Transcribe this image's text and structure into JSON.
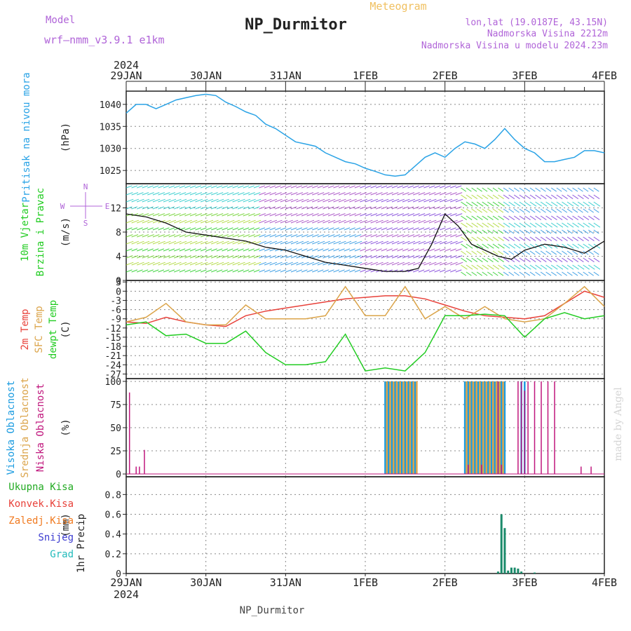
{
  "header": {
    "model_label": "Model",
    "model_name": "wrf—nmm_v3.9.1  e1km",
    "station": "NP_Durmitor",
    "product": "Meteogram",
    "lonlat": "lon,lat (19.0187E, 43.15N)",
    "elevation": "Nadmorska Visina 2212m",
    "model_elevation": "Nadmorska Visina u modelu 2024.23m",
    "year": "2024",
    "footer": "NP_Durmitor",
    "credit": "made by Angel"
  },
  "colors": {
    "pressure": "#2aa3e6",
    "temp2m": "#e8413a",
    "sfc": "#dba44a",
    "dewpt": "#22cc22",
    "high_cloud": "#1a9be0",
    "mid_cloud": "#dba44a",
    "low_cloud": "#c0177d",
    "total_precip": "#22aa22",
    "convective": "#e8413a",
    "freezing": "#f07a20",
    "snow": "#3b3bd0",
    "graupel": "#22bbbb",
    "wind_label": "#22cc22",
    "compass": "#b064d8"
  },
  "x_axis": {
    "ticks": [
      "29JAN",
      "30JAN",
      "31JAN",
      "1FEB",
      "2FEB",
      "3FEB",
      "4FEB"
    ],
    "range_hours": [
      0,
      144
    ]
  },
  "chart_data": [
    {
      "type": "line",
      "id": "pressure",
      "ylabel_lines": [
        "Pritisak na nivou mora"
      ],
      "unit": "(hPa)",
      "yticks": [
        1025,
        1030,
        1035,
        1040
      ],
      "ylim": [
        1022,
        1043
      ],
      "series": [
        {
          "x": [
            0,
            3,
            6,
            9,
            12,
            15,
            18,
            21,
            24,
            27,
            30,
            33,
            36,
            39,
            42,
            45,
            48,
            51,
            54,
            57,
            60,
            63,
            66,
            69,
            72,
            75,
            78,
            81,
            84,
            87,
            90,
            93,
            96,
            99,
            102,
            105,
            108,
            111,
            114,
            117,
            120,
            123,
            126,
            129,
            132,
            135,
            138,
            141,
            144
          ],
          "values": [
            1038,
            1040,
            1040,
            1039,
            1040,
            1041,
            1041.5,
            1042,
            1042.3,
            1042,
            1040.5,
            1039.5,
            1038.3,
            1037.5,
            1035.5,
            1034.5,
            1033,
            1031.5,
            1031,
            1030.5,
            1029,
            1028,
            1027,
            1026.5,
            1025.5,
            1024.8,
            1024,
            1023.7,
            1024,
            1026,
            1028,
            1029,
            1028,
            1030,
            1031.5,
            1031,
            1030,
            1032,
            1034.5,
            1032,
            1030,
            1029,
            1027,
            1027,
            1027.5,
            1028,
            1029.5,
            1029.5,
            1029
          ]
        }
      ]
    },
    {
      "type": "line",
      "id": "wind",
      "ylabel_lines": [
        "10m Vjetar",
        "Brzina i Pravac"
      ],
      "unit": "(m/s)",
      "yticks": [
        0,
        4,
        8,
        12
      ],
      "ylim": [
        0,
        16
      ],
      "compass": {
        "north": "N",
        "south": "S",
        "east": "E",
        "west": "W"
      },
      "series": [
        {
          "name": "wind speed",
          "x": [
            0,
            6,
            12,
            18,
            24,
            30,
            36,
            42,
            48,
            54,
            60,
            66,
            72,
            78,
            84,
            88,
            92,
            96,
            100,
            104,
            108,
            112,
            116,
            120,
            126,
            132,
            138,
            144
          ],
          "values": [
            11,
            10.5,
            9.5,
            8,
            7.5,
            7,
            6.5,
            5.5,
            5,
            4,
            3,
            2.5,
            2,
            1.5,
            1.5,
            2,
            6,
            11,
            9,
            6,
            5,
            4,
            3.5,
            5,
            6,
            5.5,
            4.5,
            6.5
          ]
        }
      ]
    },
    {
      "type": "line",
      "id": "temperature",
      "ylabel_lines": [
        "2m Temp",
        "SFC Temp",
        "dewpt Temp"
      ],
      "unit": "(C)",
      "yticks": [
        3,
        0,
        -3,
        -6,
        -9,
        -12,
        -15,
        -18,
        -21,
        -24,
        -27
      ],
      "ylim": [
        -28.5,
        3.5
      ],
      "series": [
        {
          "name": "2m Temp",
          "x": [
            0,
            6,
            12,
            18,
            24,
            30,
            36,
            42,
            48,
            54,
            60,
            66,
            72,
            78,
            84,
            90,
            96,
            102,
            108,
            114,
            120,
            126,
            132,
            138,
            144
          ],
          "values": [
            -10,
            -10.5,
            -8.5,
            -10,
            -11,
            -11.5,
            -8,
            -6.5,
            -5.5,
            -4.5,
            -3.5,
            -2.5,
            -2,
            -1.5,
            -1.5,
            -2.5,
            -4.5,
            -6.5,
            -8,
            -8.5,
            -9,
            -8,
            -4,
            0,
            -2
          ]
        },
        {
          "name": "SFC Temp",
          "x": [
            0,
            6,
            12,
            18,
            24,
            30,
            36,
            42,
            48,
            54,
            60,
            66,
            72,
            78,
            84,
            90,
            96,
            102,
            108,
            114,
            120,
            126,
            132,
            138,
            144
          ],
          "values": [
            -10,
            -8.5,
            -4,
            -10,
            -11,
            -11,
            -4.5,
            -9,
            -9,
            -9,
            -8,
            1.5,
            -8,
            -8,
            1.5,
            -9,
            -5,
            -9,
            -5,
            -9,
            -10,
            -9,
            -4,
            1.5,
            -5
          ]
        },
        {
          "name": "dewpt Temp",
          "x": [
            0,
            6,
            12,
            18,
            24,
            30,
            36,
            42,
            48,
            54,
            60,
            66,
            72,
            78,
            84,
            90,
            96,
            102,
            108,
            114,
            120,
            126,
            132,
            138,
            144
          ],
          "values": [
            -11,
            -10,
            -14.5,
            -14,
            -17,
            -17,
            -13,
            -20,
            -24,
            -24,
            -23,
            -14,
            -26,
            -25,
            -26,
            -20,
            -8,
            -8,
            -7.5,
            -8,
            -15,
            -9,
            -7,
            -9,
            -8
          ]
        }
      ]
    },
    {
      "type": "bar",
      "id": "clouds",
      "ylabel_lines": [
        "Visoka Oblacnost",
        "Srednja Oblacnost",
        "Niska Oblacnost"
      ],
      "unit": "(%)",
      "yticks": [
        0,
        25,
        50,
        75,
        100
      ],
      "ylim": [
        -3,
        103
      ],
      "series": [
        {
          "name": "Visoka Oblacnost",
          "x": [
            78,
            79,
            80,
            81,
            82,
            83,
            84,
            85,
            86,
            87,
            102,
            103,
            104,
            105,
            106,
            107,
            108,
            109,
            110,
            111,
            112,
            113,
            114,
            119,
            120
          ],
          "values": [
            100,
            100,
            100,
            100,
            100,
            100,
            100,
            100,
            100,
            100,
            100,
            100,
            100,
            100,
            100,
            100,
            100,
            100,
            100,
            100,
            100,
            100,
            100,
            100,
            100
          ]
        },
        {
          "name": "Srednja Oblacnost",
          "x": [
            78.5,
            79.5,
            80.5,
            81.5,
            82.5,
            83.5,
            84.5,
            85.5,
            86.5,
            87.5,
            102.5,
            103.5,
            104.5,
            105.5,
            106.5,
            107.5,
            108.5,
            109.5,
            110.5,
            111.5,
            112.5,
            113.5
          ],
          "values": [
            100,
            100,
            100,
            100,
            100,
            100,
            100,
            100,
            100,
            100,
            100,
            100,
            100,
            100,
            100,
            100,
            100,
            100,
            100,
            100,
            100,
            100
          ]
        },
        {
          "name": "Niska Oblacnost",
          "x": [
            1,
            3,
            4,
            5.5,
            103,
            107,
            112,
            113,
            118,
            119,
            120,
            121,
            123,
            125,
            127,
            129,
            137,
            140
          ],
          "values": [
            88,
            8,
            8,
            26,
            10,
            10,
            100,
            10,
            100,
            100,
            90,
            100,
            100,
            100,
            100,
            100,
            8,
            8
          ]
        }
      ]
    },
    {
      "type": "bar",
      "id": "precip",
      "ylabel_lines": [
        "1hr Precip"
      ],
      "unit": "(mm)",
      "yticks": [
        0,
        0.2,
        0.4,
        0.6,
        0.8
      ],
      "ylim": [
        0,
        0.98
      ],
      "legend": [
        "Ukupna Kisa",
        "Konvek.Kisa",
        "Zaledj.Kisa",
        "Snijeg",
        "Grad"
      ],
      "series": [
        {
          "name": "Snijeg",
          "x": [
            112,
            113,
            114,
            115,
            116,
            117,
            118,
            119,
            123
          ],
          "values": [
            0.02,
            0.6,
            0.46,
            0.03,
            0.06,
            0.06,
            0.05,
            0.02,
            0.01
          ]
        }
      ]
    }
  ]
}
